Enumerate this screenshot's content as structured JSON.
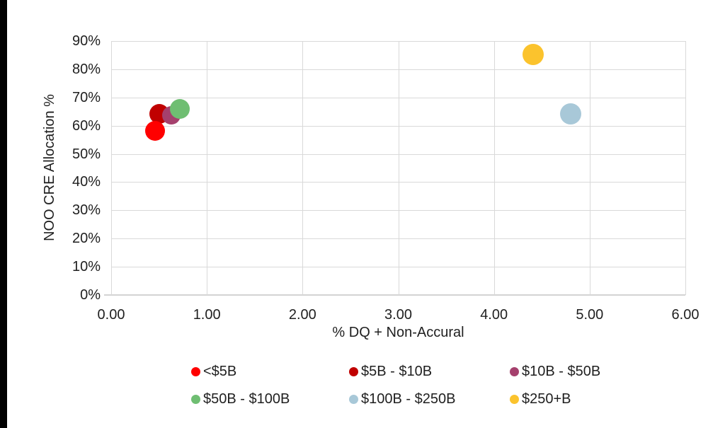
{
  "chart_data": {
    "type": "scatter",
    "title": "",
    "xlabel": "% DQ + Non-Accural",
    "ylabel": "NOO CRE Allocation %",
    "xlim": [
      0,
      6
    ],
    "xticks": [
      "0.00",
      "1.00",
      "2.00",
      "3.00",
      "4.00",
      "5.00",
      "6.00"
    ],
    "ylim_pct": [
      0,
      90
    ],
    "yticks": [
      "0%",
      "10%",
      "20%",
      "30%",
      "40%",
      "50%",
      "60%",
      "70%",
      "80%",
      "90%"
    ],
    "grid": true,
    "legend_position": "bottom",
    "legend_columns": 3,
    "series": [
      {
        "name": "<$5B",
        "color": "#FF0000",
        "x": 0.46,
        "y_pct": 58.2,
        "radius": 14
      },
      {
        "name": "$5B - $10B",
        "color": "#C00000",
        "x": 0.5,
        "y_pct": 64.3,
        "radius": 14
      },
      {
        "name": "$10B - $50B",
        "color": "#A5406D",
        "x": 0.63,
        "y_pct": 63.8,
        "radius": 13
      },
      {
        "name": "$50B - $100B",
        "color": "#6FBE72",
        "x": 0.72,
        "y_pct": 66.0,
        "radius": 14
      },
      {
        "name": "$100B - $250B",
        "color": "#A8C8D8",
        "x": 4.8,
        "y_pct": 64.3,
        "radius": 15
      },
      {
        "name": "$250+B",
        "color": "#FBC32D",
        "x": 4.41,
        "y_pct": 85.2,
        "radius": 15
      }
    ],
    "draw_order": [
      1,
      2,
      3,
      0,
      4,
      5
    ]
  },
  "colors": {
    "background": "#FFFFFF",
    "left_bar": "#000000",
    "gridline": "#D9D9D9",
    "axis_line": "#D3D3D3",
    "text": "#1F1F1F"
  }
}
